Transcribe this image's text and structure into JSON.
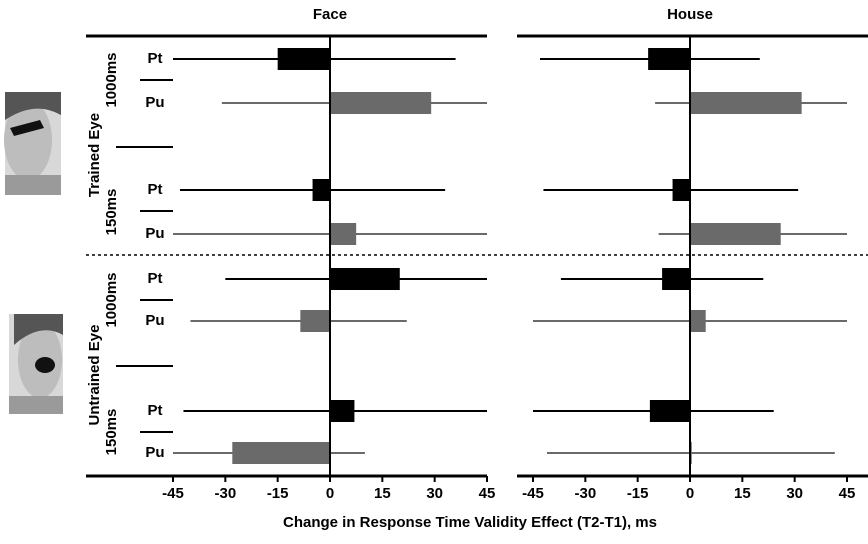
{
  "chart_data": [
    {
      "type": "bar",
      "title": "Face",
      "values": [
        -15,
        29,
        -5,
        7.5,
        20,
        -8.5,
        7,
        -28
      ],
      "ci_low": [
        -45,
        -31,
        -43,
        -45,
        -30,
        -40,
        -42,
        -45
      ],
      "ci_high": [
        36,
        45,
        33,
        45,
        45,
        22,
        45,
        10
      ],
      "xlim": [
        -45,
        45
      ],
      "xticks": [
        -45,
        -30,
        -15,
        0,
        15,
        30,
        45
      ]
    },
    {
      "type": "bar",
      "title": "House",
      "values": [
        -12,
        32,
        -5,
        26,
        -8,
        4.5,
        -11.5,
        0.5
      ],
      "ci_low": [
        -43,
        -10,
        -42,
        -9,
        -37,
        -45,
        -45,
        -41
      ],
      "ci_high": [
        20,
        45,
        31,
        45,
        21,
        45,
        24,
        41.5
      ],
      "xlim": [
        -45,
        45
      ],
      "xticks": [
        -45,
        -30,
        -15,
        0,
        15,
        30,
        45
      ]
    }
  ],
  "rows": [
    "Pt",
    "Pu",
    "Pt",
    "Pu",
    "Pt",
    "Pu",
    "Pt",
    "Pu"
  ],
  "row_colors": [
    "#000000",
    "#6a6a6a",
    "#000000",
    "#6a6a6a",
    "#000000",
    "#6a6a6a",
    "#000000",
    "#6a6a6a"
  ],
  "groups": [
    {
      "label": "Trained Eye",
      "subgroups": [
        "1000ms",
        "150ms"
      ]
    },
    {
      "label": "Untrained Eye",
      "subgroups": [
        "1000ms",
        "150ms"
      ]
    }
  ],
  "xlabel": "Change in Response Time Validity Effect (T2-T1), ms"
}
